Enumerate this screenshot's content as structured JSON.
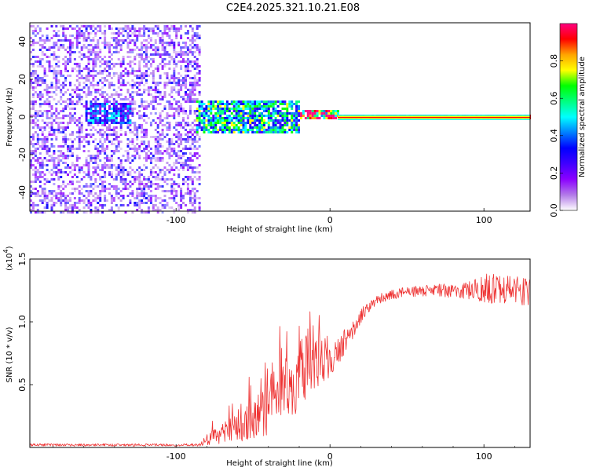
{
  "title": "C2E4.2025.321.10.21.E08",
  "chart_data": [
    {
      "type": "heatmap",
      "xlabel": "Height of straight line (km)",
      "ylabel": "Frequency (Hz)",
      "xlim": [
        -195,
        130
      ],
      "ylim": [
        -50,
        50
      ],
      "xticks": [
        -100,
        0,
        100
      ],
      "xtick_labels": [
        "-100",
        "0",
        "100"
      ],
      "yticks": [
        -40,
        -20,
        0,
        20,
        40
      ],
      "ytick_labels": [
        "-40",
        "-20",
        "0",
        "20",
        "40"
      ],
      "colorbar": {
        "label": "Normalized spectral amplitude",
        "range": [
          0,
          1
        ],
        "ticks": [
          0.0,
          0.2,
          0.4,
          0.6,
          0.8
        ],
        "tick_labels": [
          "0.0",
          "0.2",
          "0.4",
          "0.6",
          "0.8"
        ],
        "colormap": [
          "#ffffff",
          "#b27ae8",
          "#8b00ff",
          "#4000ff",
          "#0000ff",
          "#0080ff",
          "#00ffff",
          "#00ff80",
          "#00ff00",
          "#ffff00",
          "#ffa500",
          "#ff0000",
          "#ff0080"
        ]
      },
      "regions": [
        {
          "x_range": [
            -195,
            -85
          ],
          "freq_range": [
            -50,
            50
          ],
          "amplitude": 0.15,
          "description": "broadband noise"
        },
        {
          "x_range": [
            -160,
            -130
          ],
          "freq_range": [
            -3,
            8
          ],
          "amplitude": 0.35
        },
        {
          "x_range": [
            -88,
            -20
          ],
          "freq_range": [
            -8,
            10
          ],
          "amplitude": 0.5
        },
        {
          "x_range": [
            -20,
            5
          ],
          "freq_range": [
            -1,
            4
          ],
          "amplitude": 0.8
        },
        {
          "x_range": [
            5,
            130
          ],
          "freq_range": [
            -1,
            2
          ],
          "amplitude": 1.0,
          "description": "narrow carrier line"
        }
      ]
    },
    {
      "type": "line",
      "xlabel": "Height of straight line (km)",
      "ylabel": "SNR (10 * v/v)",
      "scale_label": "(x10",
      "scale_exp": "4",
      "scale_close": ")",
      "xlim": [
        -195,
        130
      ],
      "ylim": [
        0,
        1.5
      ],
      "xticks": [
        -100,
        0,
        100
      ],
      "xtick_labels": [
        "-100",
        "0",
        "100"
      ],
      "yticks": [
        0.5,
        1.0,
        1.5
      ],
      "ytick_labels": [
        "0.5",
        "1.0",
        "1.5"
      ],
      "line_color": "#ee3333",
      "series": [
        {
          "name": "SNR",
          "anchors": [
            {
              "x": -195,
              "y": 0.02,
              "spread": 0.01
            },
            {
              "x": -85,
              "y": 0.02,
              "spread": 0.01
            },
            {
              "x": -80,
              "y": 0.06,
              "spread": 0.05
            },
            {
              "x": -60,
              "y": 0.15,
              "spread": 0.12
            },
            {
              "x": -45,
              "y": 0.25,
              "spread": 0.2
            },
            {
              "x": -35,
              "y": 0.4,
              "spread": 0.25
            },
            {
              "x": -25,
              "y": 0.5,
              "spread": 0.3
            },
            {
              "x": -15,
              "y": 0.65,
              "spread": 0.25
            },
            {
              "x": -5,
              "y": 0.7,
              "spread": 0.2
            },
            {
              "x": 5,
              "y": 0.75,
              "spread": 0.12
            },
            {
              "x": 15,
              "y": 0.95,
              "spread": 0.08
            },
            {
              "x": 25,
              "y": 1.12,
              "spread": 0.05
            },
            {
              "x": 35,
              "y": 1.2,
              "spread": 0.04
            },
            {
              "x": 50,
              "y": 1.24,
              "spread": 0.04
            },
            {
              "x": 70,
              "y": 1.25,
              "spread": 0.05
            },
            {
              "x": 90,
              "y": 1.25,
              "spread": 0.07
            },
            {
              "x": 100,
              "y": 1.27,
              "spread": 0.12
            },
            {
              "x": 130,
              "y": 1.25,
              "spread": 0.12
            }
          ]
        }
      ]
    }
  ]
}
